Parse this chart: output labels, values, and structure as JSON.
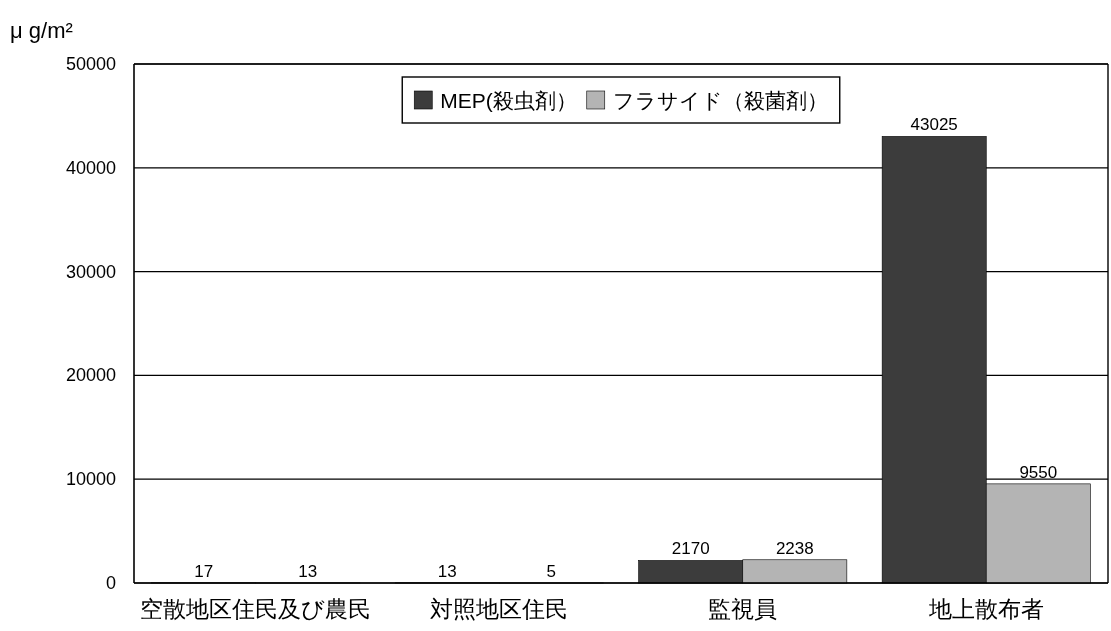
{
  "chart_data": {
    "type": "bar",
    "ylabel": "μ g/m²",
    "categories": [
      "空散地区住民及び農民",
      "対照地区住民",
      "監視員",
      "地上散布者"
    ],
    "series": [
      {
        "name": "MEP(殺虫剤）",
        "color": "#3c3c3c",
        "values": [
          17,
          13,
          2170,
          43025
        ]
      },
      {
        "name": "フラサイド（殺菌剤）",
        "color": "#b4b4b4",
        "values": [
          13,
          5,
          2238,
          9550
        ]
      }
    ],
    "ylim": [
      0,
      50000
    ],
    "yticks": [
      0,
      10000,
      20000,
      30000,
      40000,
      50000
    ],
    "grid": "y",
    "legend": "top",
    "data_labels": true
  }
}
